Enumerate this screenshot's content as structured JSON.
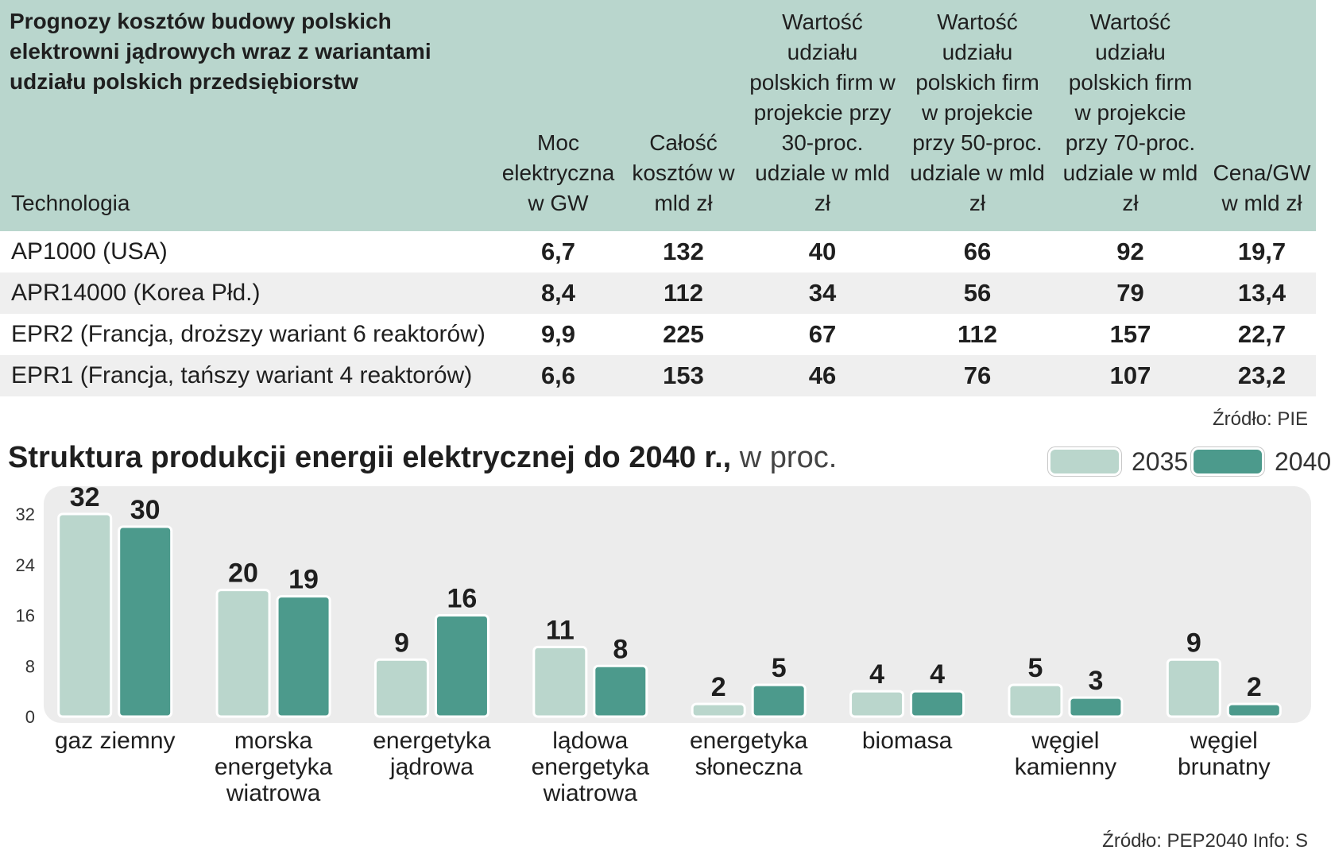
{
  "table": {
    "title": "Prognozy kosztów budowy polskich elektrowni jądrowych wraz z wariantami udziału polskich przedsiębiorstw",
    "columns": [
      "Technologia",
      "Moc elektryczna w GW",
      "Całość kosztów w mld zł",
      "Wartość udziału polskich firm w projekcie przy 30-proc. udziale w mld zł",
      "Wartość udziału polskich firm w projekcie przy 50-proc. udziale w mld zł",
      "Wartość udziału polskich firm w projekcie przy 70-proc. udziale w mld zł",
      "Cena/GW w mld zł"
    ],
    "rows": [
      [
        "AP1000 (USA)",
        "6,7",
        "132",
        "40",
        "66",
        "92",
        "19,7"
      ],
      [
        "APR14000 (Korea Płd.)",
        "8,4",
        "112",
        "34",
        "56",
        "79",
        "13,4"
      ],
      [
        "EPR2 (Francja, droższy wariant 6 reaktorów)",
        "9,9",
        "225",
        "67",
        "112",
        "157",
        "22,7"
      ],
      [
        "EPR1 (Francja, tańszy wariant 4 reaktorów)",
        "6,6",
        "153",
        "46",
        "76",
        "107",
        "23,2"
      ]
    ],
    "source": "Źródło: PIE"
  },
  "chart_data": {
    "type": "bar",
    "title": "Struktura produkcji energii elektrycznej do 2040 r.,",
    "title_unit": "w proc.",
    "categories": [
      "gaz ziemny",
      "morska energetyka wiatrowa",
      "energetyka jądrowa",
      "lądowa energetyka wiatrowa",
      "energetyka słoneczna",
      "biomasa",
      "węgiel kamienny",
      "węgiel brunatny"
    ],
    "category_lines": [
      [
        "gaz ziemny"
      ],
      [
        "morska",
        "energetyka",
        "wiatrowa"
      ],
      [
        "energetyka",
        "jądrowa"
      ],
      [
        "lądowa",
        "energetyka",
        "wiatrowa"
      ],
      [
        "energetyka",
        "słoneczna"
      ],
      [
        "biomasa"
      ],
      [
        "węgiel",
        "kamienny"
      ],
      [
        "węgiel",
        "brunatny"
      ]
    ],
    "series": [
      {
        "name": "2035",
        "values": [
          32,
          20,
          9,
          11,
          2,
          4,
          5,
          9
        ]
      },
      {
        "name": "2040",
        "values": [
          30,
          19,
          16,
          8,
          5,
          4,
          3,
          2
        ]
      }
    ],
    "yticks": [
      0,
      8,
      16,
      24,
      32
    ],
    "ylim": [
      0,
      32
    ],
    "xlabel": "",
    "ylabel": "",
    "grid": false,
    "legend_position": "top-right"
  },
  "chart_source": "Źródło: PEP2040   Info: S",
  "colors": {
    "header_bg": "#b9d6cd",
    "row_alt": "#efefef",
    "bar_2035": "#bad6cc",
    "bar_2040": "#4c9a8c",
    "plot_bg": "#ececec"
  }
}
